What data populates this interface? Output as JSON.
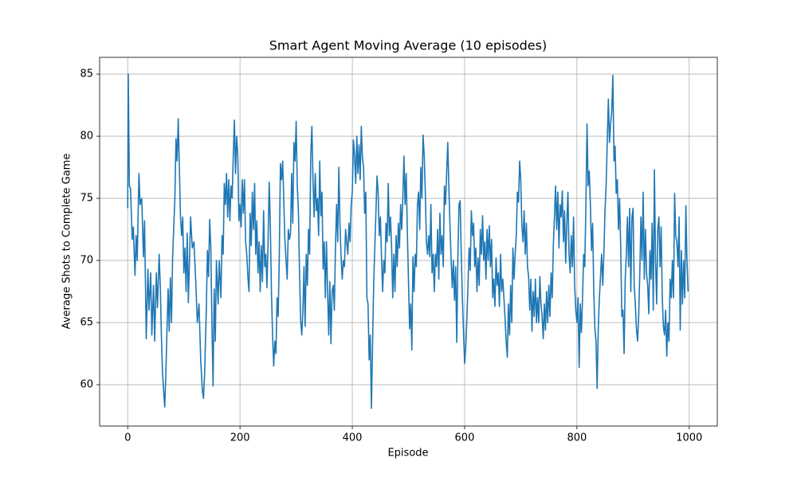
{
  "chart_data": {
    "type": "line",
    "title": "Smart Agent Moving Average (10 episodes)",
    "x_label": "Episode",
    "y_label": "Average Shots to Complete Game",
    "xlim": [
      -50,
      1050
    ],
    "xticks": [
      0,
      200,
      400,
      600,
      800,
      1000
    ],
    "ylim": [
      56.67,
      86.35
    ],
    "yticks": [
      60,
      65,
      70,
      75,
      80,
      85
    ],
    "grid": true,
    "series": [
      {
        "color": "#1f77b4",
        "x": [
          0,
          1,
          3,
          5,
          8,
          10,
          13,
          15,
          17,
          20,
          22,
          25,
          28,
          30,
          33,
          36,
          38,
          41,
          43,
          46,
          48,
          51,
          53,
          56,
          58,
          60,
          62,
          64,
          66,
          68,
          70,
          72,
          74,
          76,
          78,
          80,
          84,
          86,
          88,
          90,
          92,
          94,
          96,
          98,
          100,
          102,
          104,
          106,
          108,
          110,
          112,
          115,
          118,
          121,
          124,
          127,
          130,
          133,
          135,
          137,
          140,
          142,
          144,
          146,
          148,
          150,
          152,
          154,
          156,
          158,
          161,
          163,
          166,
          168,
          170,
          172,
          174,
          176,
          178,
          180,
          182,
          184,
          186,
          188,
          190,
          192,
          194,
          196,
          198,
          200,
          202,
          204,
          206,
          208,
          210,
          212,
          214,
          216,
          218,
          220,
          222,
          224,
          226,
          228,
          230,
          232,
          234,
          236,
          238,
          240,
          242,
          244,
          246,
          248,
          250,
          252,
          254,
          256,
          258,
          260,
          262,
          264,
          266,
          268,
          270,
          272,
          274,
          276,
          278,
          280,
          282,
          284,
          286,
          288,
          290,
          292,
          294,
          296,
          298,
          300,
          302,
          304,
          306,
          308,
          310,
          312,
          314,
          316,
          318,
          320,
          322,
          324,
          326,
          328,
          330,
          332,
          334,
          336,
          338,
          340,
          342,
          344,
          346,
          348,
          350,
          352,
          354,
          356,
          358,
          360,
          362,
          364,
          366,
          368,
          370,
          372,
          374,
          376,
          378,
          380,
          382,
          384,
          386,
          388,
          390,
          392,
          394,
          396,
          398,
          400,
          402,
          404,
          406,
          408,
          410,
          412,
          414,
          416,
          418,
          420,
          422,
          424,
          426,
          428,
          430,
          432,
          434,
          436,
          438,
          440,
          442,
          444,
          446,
          448,
          450,
          452,
          454,
          456,
          458,
          460,
          462,
          464,
          466,
          468,
          470,
          472,
          474,
          476,
          478,
          480,
          482,
          484,
          486,
          488,
          490,
          492,
          494,
          496,
          498,
          500,
          502,
          504,
          506,
          508,
          510,
          512,
          514,
          516,
          518,
          520,
          522,
          524,
          526,
          528,
          530,
          532,
          534,
          536,
          538,
          540,
          542,
          544,
          546,
          548,
          550,
          552,
          554,
          556,
          558,
          560,
          562,
          564,
          566,
          568,
          570,
          572,
          574,
          576,
          578,
          580,
          582,
          584,
          586,
          588,
          590,
          592,
          594,
          596,
          598,
          600,
          602,
          604,
          606,
          608,
          610,
          612,
          614,
          616,
          618,
          620,
          622,
          624,
          626,
          628,
          630,
          632,
          634,
          636,
          638,
          640,
          642,
          644,
          646,
          648,
          650,
          652,
          654,
          656,
          658,
          660,
          662,
          664,
          666,
          668,
          670,
          672,
          674,
          676,
          678,
          680,
          682,
          684,
          686,
          688,
          690,
          692,
          694,
          696,
          698,
          700,
          702,
          704,
          706,
          708,
          710,
          712,
          714,
          716,
          718,
          720,
          722,
          724,
          726,
          728,
          730,
          732,
          734,
          736,
          738,
          740,
          742,
          744,
          746,
          748,
          750,
          752,
          754,
          756,
          758,
          760,
          762,
          764,
          766,
          768,
          770,
          772,
          774,
          776,
          778,
          780,
          782,
          784,
          786,
          788,
          790,
          792,
          794,
          796,
          798,
          800,
          802,
          804,
          806,
          808,
          810,
          812,
          814,
          816,
          818,
          820,
          822,
          824,
          826,
          828,
          830,
          832,
          834,
          836,
          838,
          840,
          842,
          844,
          846,
          848,
          850,
          852,
          854,
          856,
          858,
          860,
          862,
          864,
          866,
          868,
          870,
          872,
          874,
          876,
          878,
          880,
          882,
          884,
          886,
          888,
          890,
          892,
          894,
          896,
          898,
          900,
          902,
          904,
          906,
          908,
          910,
          912,
          914,
          916,
          918,
          920,
          922,
          924,
          926,
          928,
          930,
          932,
          934,
          936,
          938,
          940,
          942,
          944,
          946,
          948,
          950,
          952,
          954,
          956,
          958,
          960,
          962,
          964,
          966,
          968,
          970,
          972,
          974,
          976,
          978,
          980,
          982,
          984,
          986,
          988,
          990,
          992,
          994,
          996,
          998
        ],
        "values": [
          74.2,
          85,
          76,
          75.8,
          71.7,
          72.7,
          68.8,
          72,
          70,
          77,
          74.5,
          75,
          70.3,
          73.2,
          63.7,
          69.3,
          66,
          69,
          64,
          68,
          63.5,
          69,
          66.2,
          70.5,
          68,
          64,
          61,
          59.5,
          58.2,
          61,
          64.5,
          67.7,
          64.3,
          68.6,
          65,
          70.3,
          75,
          79.8,
          78,
          81.4,
          77.5,
          73.5,
          72,
          73.5,
          69,
          71,
          67.5,
          72.2,
          66.6,
          70,
          73.5,
          71,
          71.5,
          68.5,
          65,
          66.5,
          62,
          59.5,
          58.9,
          61,
          66,
          70.8,
          68.7,
          73.3,
          71,
          65,
          59.9,
          67.7,
          63.5,
          70,
          66.5,
          70,
          67,
          72,
          70.5,
          76.2,
          74.5,
          77,
          73.5,
          76.5,
          73.2,
          76,
          75,
          78.4,
          81.3,
          77,
          80,
          78.5,
          73.2,
          74.5,
          72.7,
          76.5,
          73.8,
          76.5,
          71.5,
          70.5,
          68.7,
          67.5,
          73.8,
          71.2,
          75.5,
          72.5,
          76.2,
          70.5,
          73.2,
          69,
          71.5,
          67.5,
          71.2,
          68.3,
          74,
          69.5,
          70.5,
          67.8,
          71.5,
          76.3,
          72.8,
          67.5,
          64,
          61.5,
          63.5,
          62.5,
          67,
          65.5,
          70.5,
          77.8,
          76.5,
          78,
          74.7,
          71.6,
          70,
          68.5,
          72.5,
          71.7,
          72.2,
          77,
          73,
          79.5,
          78,
          81.2,
          76,
          74,
          69,
          65.2,
          64,
          66,
          69.5,
          64.7,
          70.5,
          68,
          72.5,
          70.5,
          78.5,
          80.8,
          76.5,
          73.5,
          77,
          74,
          75,
          72,
          78,
          73.6,
          75.5,
          69.3,
          71.5,
          67,
          71.5,
          67.5,
          64,
          68.3,
          63.3,
          67.5,
          68,
          66,
          71,
          74.5,
          71.5,
          77.5,
          73,
          70.3,
          68.5,
          70,
          69.5,
          72.5,
          71.5,
          70.5,
          73,
          71.5,
          74.5,
          75.5,
          79.7,
          78.5,
          76.2,
          80,
          77,
          79.3,
          76.5,
          80.8,
          78.3,
          77.5,
          73.8,
          75.5,
          67,
          66.5,
          62,
          64,
          58.1,
          63,
          68,
          71,
          73.8,
          76.8,
          75.5,
          72,
          73.5,
          70.3,
          67.5,
          70,
          69,
          73,
          71.5,
          76.2,
          72,
          73.5,
          71,
          67,
          70.5,
          67.5,
          72,
          69.5,
          73,
          71,
          74.5,
          72.5,
          75,
          78.4,
          74.5,
          77,
          72.3,
          68.5,
          64.5,
          66.5,
          62.8,
          70.3,
          67.5,
          70.5,
          69.5,
          74.5,
          75.5,
          72.5,
          77.5,
          75,
          80.1,
          78.5,
          75.5,
          71.5,
          70.5,
          72,
          70.3,
          74.5,
          69,
          70.5,
          67.5,
          70.5,
          69.5,
          72.5,
          68.5,
          73.8,
          70.5,
          72,
          69.5,
          76,
          74.5,
          77,
          79.5,
          75.8,
          72.7,
          70,
          67.8,
          70,
          66.8,
          69.5,
          63.4,
          70.3,
          74.5,
          74.8,
          70.5,
          67,
          64.3,
          61.7,
          63,
          65.3,
          68,
          71,
          69.2,
          74,
          72,
          73,
          69.5,
          71,
          67.5,
          70.2,
          68,
          72.5,
          70.5,
          73.6,
          70,
          71.5,
          68.5,
          72.5,
          70,
          72.8,
          69.5,
          71.7,
          67,
          68.5,
          66.3,
          70.2,
          68,
          69,
          66.3,
          70.5,
          67.5,
          68.5,
          67,
          65.3,
          63.5,
          62.2,
          66.5,
          64,
          68,
          65,
          71,
          68.5,
          70.5,
          72,
          75.5,
          74.7,
          78,
          76.5,
          72.8,
          71.5,
          74,
          70.5,
          73,
          69.5,
          68.7,
          66,
          68.5,
          64.3,
          67.5,
          65.5,
          68.5,
          65,
          67,
          65,
          68.7,
          66.5,
          65.5,
          63.7,
          66.5,
          64.4,
          67.5,
          65,
          68,
          65.5,
          69,
          67,
          71.2,
          73.5,
          76,
          72.5,
          75.5,
          71,
          74.5,
          73.5,
          75.6,
          71.5,
          74,
          69.8,
          73,
          75.5,
          70.5,
          69,
          72,
          69.5,
          73.5,
          68,
          66,
          65,
          67,
          61.4,
          66.5,
          64.2,
          67,
          70.5,
          69.5,
          74.5,
          81,
          76,
          77.2,
          74.5,
          70.8,
          73,
          67.5,
          64.5,
          63.5,
          59.7,
          64.5,
          67,
          68.7,
          70.5,
          68,
          70.5,
          74,
          76,
          79.5,
          83,
          79.5,
          81,
          82,
          84.9,
          78,
          79.2,
          75.4,
          76.5,
          72.5,
          75,
          71,
          65.5,
          66,
          62.5,
          68.5,
          70.5,
          73.5,
          69.5,
          74.2,
          67.5,
          73.5,
          74.2,
          68,
          66.5,
          64.5,
          63.5,
          65.5,
          69,
          73.5,
          70,
          75.5,
          68.5,
          72.5,
          69,
          68,
          65.7,
          70.8,
          68.5,
          73,
          66,
          77.3,
          70,
          66.5,
          72.5,
          73.5,
          69.5,
          72.7,
          67,
          64.7,
          64,
          66,
          62.3,
          65,
          63.5,
          68.5,
          67,
          70,
          67,
          75.4,
          72,
          71.5,
          69.5,
          73.5,
          64.4,
          70.8,
          66.5,
          70,
          67,
          74.4,
          70,
          67.5
        ]
      }
    ]
  }
}
